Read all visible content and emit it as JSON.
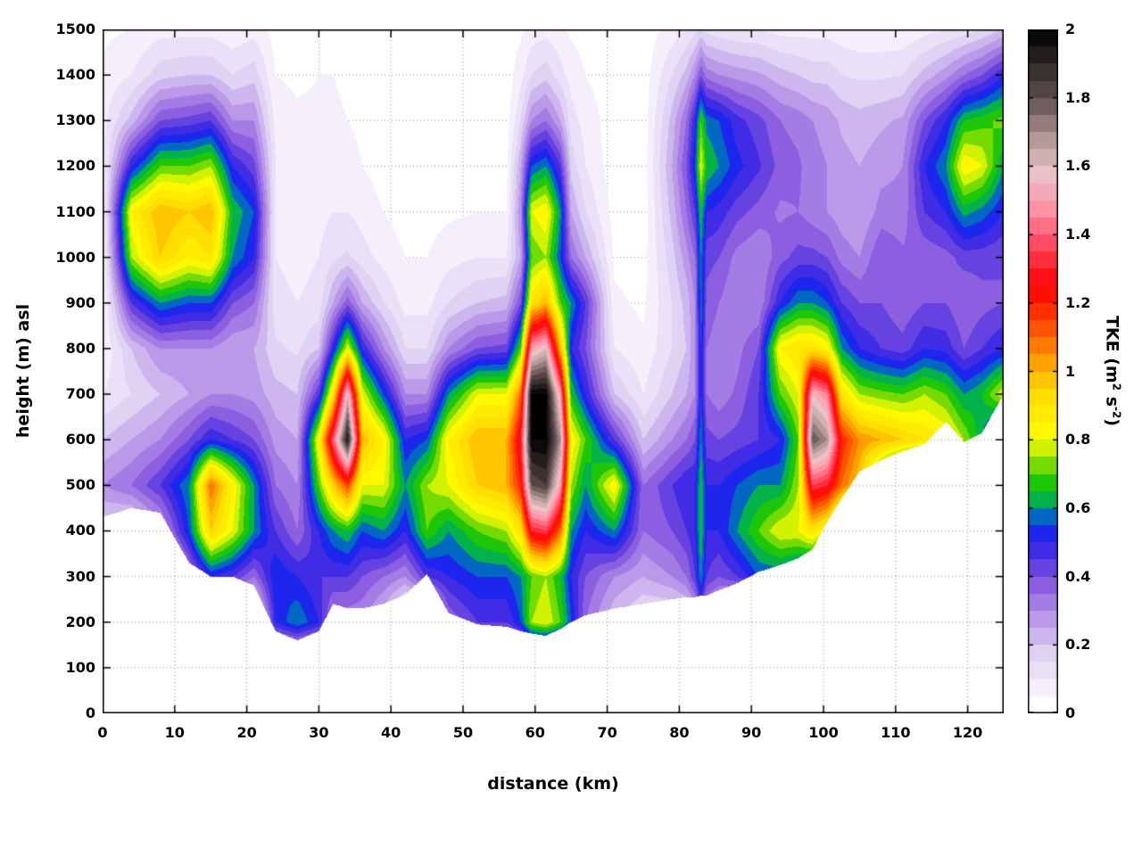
{
  "chart_data": {
    "type": "heatmap",
    "title": "",
    "xlabel": "distance (km)",
    "ylabel": "height (m) asl",
    "colorbar_label_parts": [
      "TKE (m",
      "2",
      " s",
      "-2",
      ")"
    ],
    "x_range": [
      0,
      125
    ],
    "y_range": [
      0,
      1500
    ],
    "c_range": [
      0,
      2
    ],
    "grid": true,
    "legend_position": "right-colorbar",
    "level_step": 0.05,
    "x_ticks": [
      0,
      10,
      20,
      30,
      40,
      50,
      60,
      70,
      80,
      90,
      100,
      110,
      120
    ],
    "x_tick_labels": [
      "0",
      "10",
      "20",
      "30",
      "40",
      "50",
      "60",
      "70",
      "80",
      "90",
      "100",
      "110",
      "120"
    ],
    "y_ticks": [
      0,
      100,
      200,
      300,
      400,
      500,
      600,
      700,
      800,
      900,
      1000,
      1100,
      1200,
      1300,
      1400,
      1500
    ],
    "y_tick_labels": [
      "0",
      "100",
      "200",
      "300",
      "400",
      "500",
      "600",
      "700",
      "800",
      "900",
      "1000",
      "1100",
      "1200",
      "1300",
      "1400",
      "1500"
    ],
    "cb_tick_values": [
      0,
      0.2,
      0.4,
      0.6,
      0.8,
      1,
      1.2,
      1.4,
      1.6,
      1.8,
      2
    ],
    "cb_tick_labels": [
      "0",
      "0.2",
      "0.4",
      "0.6",
      "0.8",
      "1",
      "1.2",
      "1.4",
      "1.6",
      "1.8",
      "2"
    ],
    "colormap_stops": [
      [
        0.0,
        "#ffffff"
      ],
      [
        0.08,
        "#f4eefb"
      ],
      [
        0.18,
        "#ded0f2"
      ],
      [
        0.28,
        "#b897e8"
      ],
      [
        0.38,
        "#8a5ce0"
      ],
      [
        0.46,
        "#4a30e0"
      ],
      [
        0.52,
        "#2020f0"
      ],
      [
        0.57,
        "#0060d0"
      ],
      [
        0.62,
        "#00b050"
      ],
      [
        0.68,
        "#20c800"
      ],
      [
        0.74,
        "#90e000"
      ],
      [
        0.8,
        "#ffff00"
      ],
      [
        0.95,
        "#ffd800"
      ],
      [
        1.05,
        "#ff9000"
      ],
      [
        1.15,
        "#ff4000"
      ],
      [
        1.25,
        "#ff0000"
      ],
      [
        1.38,
        "#ff5068"
      ],
      [
        1.48,
        "#ff96a8"
      ],
      [
        1.58,
        "#e8c4c8"
      ],
      [
        1.68,
        "#b49898"
      ],
      [
        1.8,
        "#5f4f4f"
      ],
      [
        2.0,
        "#000000"
      ]
    ],
    "y_m": [
      0,
      100,
      200,
      300,
      400,
      500,
      600,
      700,
      800,
      900,
      1000,
      1100,
      1200,
      1300,
      1400,
      1500
    ],
    "x_km": [
      0,
      4,
      8,
      12,
      15,
      18,
      21,
      24,
      27,
      30,
      32,
      34,
      36,
      39,
      42,
      45,
      48,
      52,
      56,
      58,
      59.5,
      61.5,
      63.5,
      65,
      67,
      71,
      75,
      79,
      81,
      82.2,
      83,
      83.8,
      85.5,
      88,
      91,
      94,
      96.5,
      98.5,
      100.5,
      102.5,
      105,
      108,
      111,
      114,
      117,
      119.5,
      122,
      125
    ],
    "terrain_m": [
      430,
      450,
      440,
      330,
      300,
      300,
      280,
      180,
      160,
      180,
      240,
      230,
      230,
      240,
      260,
      305,
      220,
      195,
      190,
      180,
      175,
      170,
      185,
      200,
      215,
      230,
      240,
      250,
      255,
      255,
      258,
      258,
      270,
      285,
      310,
      325,
      340,
      360,
      420,
      470,
      530,
      555,
      575,
      590,
      640,
      595,
      615,
      700
    ],
    "tke": [
      [
        0,
        0,
        0,
        0,
        0.15,
        0.3,
        0.2,
        0.1,
        0.05,
        0.03,
        0.03,
        0.04,
        0.06,
        0.08,
        0.06,
        0.04
      ],
      [
        0,
        0,
        0,
        0,
        0.12,
        0.35,
        0.25,
        0.15,
        0.2,
        0.45,
        0.75,
        0.85,
        0.5,
        0.22,
        0.1,
        0.05
      ],
      [
        0,
        0,
        0,
        0,
        0.25,
        0.45,
        0.3,
        0.2,
        0.3,
        0.6,
        0.95,
        1.0,
        0.7,
        0.4,
        0.18,
        0.08
      ],
      [
        0,
        0,
        0,
        0.3,
        0.55,
        0.6,
        0.4,
        0.25,
        0.3,
        0.55,
        0.85,
        0.95,
        0.7,
        0.42,
        0.2,
        0.08
      ],
      [
        0,
        0,
        0,
        0.5,
        0.95,
        1.1,
        0.5,
        0.3,
        0.3,
        0.55,
        0.9,
        1.0,
        0.75,
        0.45,
        0.2,
        0.08
      ],
      [
        0,
        0,
        0,
        0.45,
        0.8,
        0.85,
        0.45,
        0.3,
        0.25,
        0.4,
        0.6,
        0.65,
        0.5,
        0.3,
        0.15,
        0.06
      ],
      [
        0,
        0,
        0,
        0.35,
        0.6,
        0.6,
        0.4,
        0.28,
        0.25,
        0.35,
        0.5,
        0.55,
        0.42,
        0.3,
        0.18,
        0.08
      ],
      [
        0,
        0,
        0.5,
        0.55,
        0.45,
        0.35,
        0.28,
        0.22,
        0.16,
        0.12,
        0.1,
        0.1,
        0.1,
        0.08,
        0.05,
        0.03
      ],
      [
        0,
        0,
        0.6,
        0.5,
        0.35,
        0.3,
        0.25,
        0.2,
        0.14,
        0.1,
        0.08,
        0.08,
        0.08,
        0.06,
        0.04,
        0.02
      ],
      [
        0,
        0,
        0.5,
        0.45,
        0.5,
        0.7,
        0.85,
        0.45,
        0.2,
        0.12,
        0.1,
        0.08,
        0.08,
        0.06,
        0.05,
        0.03
      ],
      [
        0,
        0,
        0.3,
        0.45,
        0.6,
        0.95,
        1.4,
        0.9,
        0.5,
        0.25,
        0.14,
        0.1,
        0.08,
        0.06,
        0.05,
        0.03
      ],
      [
        0,
        0,
        0.3,
        0.45,
        0.65,
        1.15,
        1.95,
        1.6,
        0.8,
        0.38,
        0.16,
        0.1,
        0.07,
        0.05,
        0.04,
        0.03
      ],
      [
        0,
        0,
        0.3,
        0.4,
        0.55,
        0.8,
        1.0,
        0.8,
        0.5,
        0.25,
        0.12,
        0.08,
        0.05,
        0.04,
        0.03,
        0.02
      ],
      [
        0,
        0,
        0.2,
        0.35,
        0.6,
        0.8,
        0.85,
        0.55,
        0.3,
        0.15,
        0.08,
        0.05,
        0.03,
        0.02,
        0.02,
        0.02
      ],
      [
        0,
        0,
        0,
        0.3,
        0.5,
        0.6,
        0.5,
        0.3,
        0.15,
        0.08,
        0.05,
        0.03,
        0.02,
        0.02,
        0.02,
        0.02
      ],
      [
        0,
        0,
        0,
        0.45,
        0.7,
        0.75,
        0.55,
        0.3,
        0.15,
        0.08,
        0.05,
        0.03,
        0.02,
        0.02,
        0.02,
        0.02
      ],
      [
        0,
        0,
        0.35,
        0.5,
        0.6,
        0.8,
        0.85,
        0.6,
        0.3,
        0.15,
        0.08,
        0.04,
        0.03,
        0.02,
        0.02,
        0.02
      ],
      [
        0,
        0,
        0.45,
        0.55,
        0.7,
        0.95,
        1.0,
        0.8,
        0.4,
        0.2,
        0.1,
        0.05,
        0.03,
        0.02,
        0.02,
        0.02
      ],
      [
        0,
        0,
        0.45,
        0.55,
        0.75,
        1.0,
        1.0,
        0.8,
        0.42,
        0.22,
        0.1,
        0.05,
        0.03,
        0.02,
        0.02,
        0.02
      ],
      [
        0,
        0,
        0.55,
        0.6,
        0.9,
        1.2,
        1.3,
        1.1,
        0.7,
        0.4,
        0.25,
        0.3,
        0.25,
        0.15,
        0.08,
        0.04
      ],
      [
        0,
        0,
        0.75,
        0.7,
        1.3,
        1.8,
        2.0,
        2.0,
        1.5,
        0.9,
        0.7,
        0.8,
        0.55,
        0.3,
        0.15,
        0.07
      ],
      [
        0,
        0,
        0.8,
        0.75,
        1.35,
        1.85,
        2.0,
        2.0,
        1.6,
        1.0,
        0.75,
        0.85,
        0.6,
        0.35,
        0.18,
        0.08
      ],
      [
        0,
        0,
        0.7,
        0.65,
        1.1,
        1.5,
        1.7,
        1.5,
        1.0,
        0.7,
        0.55,
        0.6,
        0.45,
        0.25,
        0.12,
        0.06
      ],
      [
        0,
        0,
        0.55,
        0.5,
        0.6,
        0.75,
        0.85,
        0.65,
        0.5,
        0.6,
        0.35,
        0.25,
        0.18,
        0.12,
        0.08,
        0.04
      ],
      [
        0,
        0,
        0.35,
        0.4,
        0.5,
        0.6,
        0.7,
        0.5,
        0.4,
        0.45,
        0.25,
        0.15,
        0.1,
        0.08,
        0.05,
        0.03
      ],
      [
        0,
        0,
        0.2,
        0.3,
        0.6,
        0.85,
        0.45,
        0.2,
        0.1,
        0.06,
        0.04,
        0.03,
        0.02,
        0.02,
        0.02,
        0.02
      ],
      [
        0,
        0,
        0.12,
        0.25,
        0.35,
        0.35,
        0.2,
        0.1,
        0.06,
        0.04,
        0.03,
        0.02,
        0.02,
        0.02,
        0.02,
        0.02
      ],
      [
        0,
        0,
        0.1,
        0.3,
        0.4,
        0.45,
        0.3,
        0.2,
        0.15,
        0.15,
        0.18,
        0.22,
        0.25,
        0.22,
        0.15,
        0.07
      ],
      [
        0,
        0,
        0.12,
        0.35,
        0.45,
        0.5,
        0.35,
        0.25,
        0.2,
        0.22,
        0.28,
        0.35,
        0.4,
        0.35,
        0.22,
        0.1
      ],
      [
        0,
        0,
        0.2,
        0.45,
        0.5,
        0.5,
        0.4,
        0.3,
        0.3,
        0.3,
        0.35,
        0.45,
        0.55,
        0.5,
        0.3,
        0.13
      ],
      [
        0,
        0,
        0.35,
        0.6,
        0.65,
        0.65,
        0.6,
        0.55,
        0.55,
        0.6,
        0.6,
        0.65,
        0.8,
        0.7,
        0.4,
        0.16
      ],
      [
        0,
        0,
        0.2,
        0.45,
        0.5,
        0.5,
        0.42,
        0.35,
        0.35,
        0.38,
        0.42,
        0.5,
        0.65,
        0.58,
        0.33,
        0.13
      ],
      [
        0,
        0,
        0.15,
        0.4,
        0.5,
        0.5,
        0.4,
        0.32,
        0.32,
        0.35,
        0.4,
        0.48,
        0.6,
        0.55,
        0.3,
        0.12
      ],
      [
        0,
        0,
        0,
        0.45,
        0.6,
        0.55,
        0.42,
        0.36,
        0.33,
        0.3,
        0.33,
        0.42,
        0.52,
        0.47,
        0.28,
        0.1
      ],
      [
        0,
        0,
        0,
        0.55,
        0.7,
        0.6,
        0.45,
        0.45,
        0.4,
        0.3,
        0.3,
        0.38,
        0.46,
        0.42,
        0.26,
        0.1
      ],
      [
        0,
        0,
        0,
        0.55,
        0.8,
        0.6,
        0.5,
        0.7,
        0.85,
        0.5,
        0.38,
        0.34,
        0.38,
        0.35,
        0.22,
        0.08
      ],
      [
        0,
        0,
        0,
        0.5,
        0.8,
        0.75,
        0.7,
        0.8,
        0.9,
        0.6,
        0.42,
        0.35,
        0.36,
        0.33,
        0.2,
        0.08
      ],
      [
        0,
        0,
        0,
        0.4,
        0.9,
        1.35,
        1.8,
        1.55,
        0.9,
        0.6,
        0.42,
        0.32,
        0.32,
        0.3,
        0.18,
        0.08
      ],
      [
        0,
        0,
        0,
        0,
        0.8,
        1.3,
        1.7,
        1.45,
        0.85,
        0.55,
        0.4,
        0.3,
        0.3,
        0.28,
        0.18,
        0.08
      ],
      [
        0,
        0,
        0,
        0,
        0.5,
        1.1,
        1.2,
        0.9,
        0.6,
        0.45,
        0.33,
        0.27,
        0.27,
        0.24,
        0.15,
        0.07
      ],
      [
        0,
        0,
        0,
        0,
        0,
        0.95,
        1.05,
        0.75,
        0.5,
        0.4,
        0.3,
        0.25,
        0.25,
        0.22,
        0.14,
        0.06
      ],
      [
        0,
        0,
        0,
        0,
        0,
        0.5,
        1.0,
        0.72,
        0.45,
        0.4,
        0.4,
        0.32,
        0.28,
        0.24,
        0.14,
        0.06
      ],
      [
        0,
        0,
        0,
        0,
        0,
        0.2,
        0.95,
        0.7,
        0.42,
        0.36,
        0.36,
        0.32,
        0.3,
        0.26,
        0.15,
        0.06
      ],
      [
        0,
        0,
        0,
        0,
        0,
        0,
        0.9,
        0.75,
        0.5,
        0.4,
        0.36,
        0.45,
        0.5,
        0.4,
        0.22,
        0.08
      ],
      [
        0,
        0,
        0,
        0,
        0,
        0,
        0.85,
        0.7,
        0.48,
        0.4,
        0.38,
        0.5,
        0.6,
        0.5,
        0.28,
        0.1
      ],
      [
        0,
        0,
        0,
        0,
        0,
        0.1,
        0.75,
        0.6,
        0.4,
        0.35,
        0.42,
        0.62,
        0.85,
        0.65,
        0.35,
        0.12
      ],
      [
        0,
        0,
        0,
        0,
        0,
        0,
        0.6,
        0.65,
        0.45,
        0.38,
        0.42,
        0.58,
        0.8,
        0.68,
        0.4,
        0.15
      ],
      [
        0,
        0,
        0,
        0,
        0,
        0,
        0.35,
        0.8,
        0.5,
        0.4,
        0.4,
        0.5,
        0.6,
        0.72,
        0.5,
        0.2
      ]
    ]
  }
}
